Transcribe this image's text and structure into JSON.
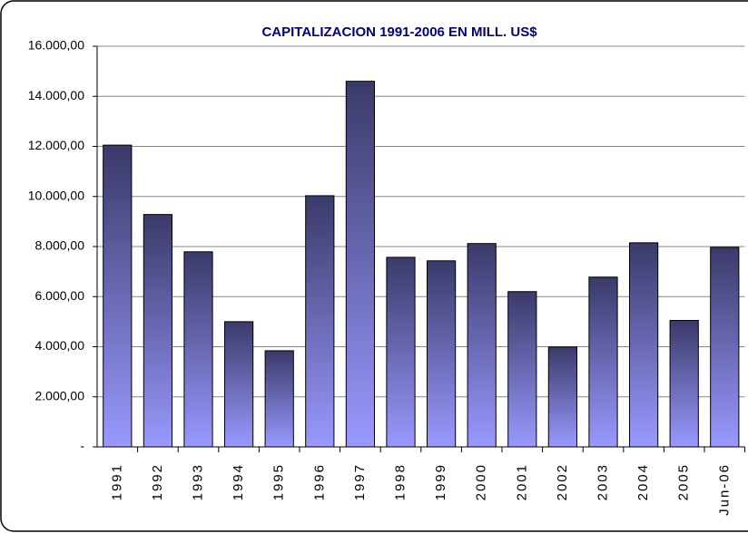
{
  "chart_data": {
    "type": "bar",
    "title": "CAPITALIZACION 1991-2006 EN MILL. US$",
    "categories": [
      "1991",
      "1992",
      "1993",
      "1994",
      "1995",
      "1996",
      "1997",
      "1998",
      "1999",
      "2000",
      "2001",
      "2002",
      "2003",
      "2004",
      "2005",
      "Jun-06"
    ],
    "values": [
      12050,
      9280,
      7790,
      5000,
      3840,
      10030,
      14600,
      7570,
      7430,
      8120,
      6200,
      3990,
      6780,
      8150,
      5050,
      7970
    ],
    "color": "#6f6fc8",
    "ylim": [
      0,
      16000
    ],
    "yticks": [
      {
        "value": 0,
        "label": "-"
      },
      {
        "value": 2000,
        "label": "2.000,00"
      },
      {
        "value": 4000,
        "label": "4.000,00"
      },
      {
        "value": 6000,
        "label": "6.000,00"
      },
      {
        "value": 8000,
        "label": "8.000,00"
      },
      {
        "value": 10000,
        "label": "10.000,00"
      },
      {
        "value": 12000,
        "label": "12.000,00"
      },
      {
        "value": 14000,
        "label": "14.000,00"
      },
      {
        "value": 16000,
        "label": "16.000,00"
      }
    ],
    "grid": true
  }
}
